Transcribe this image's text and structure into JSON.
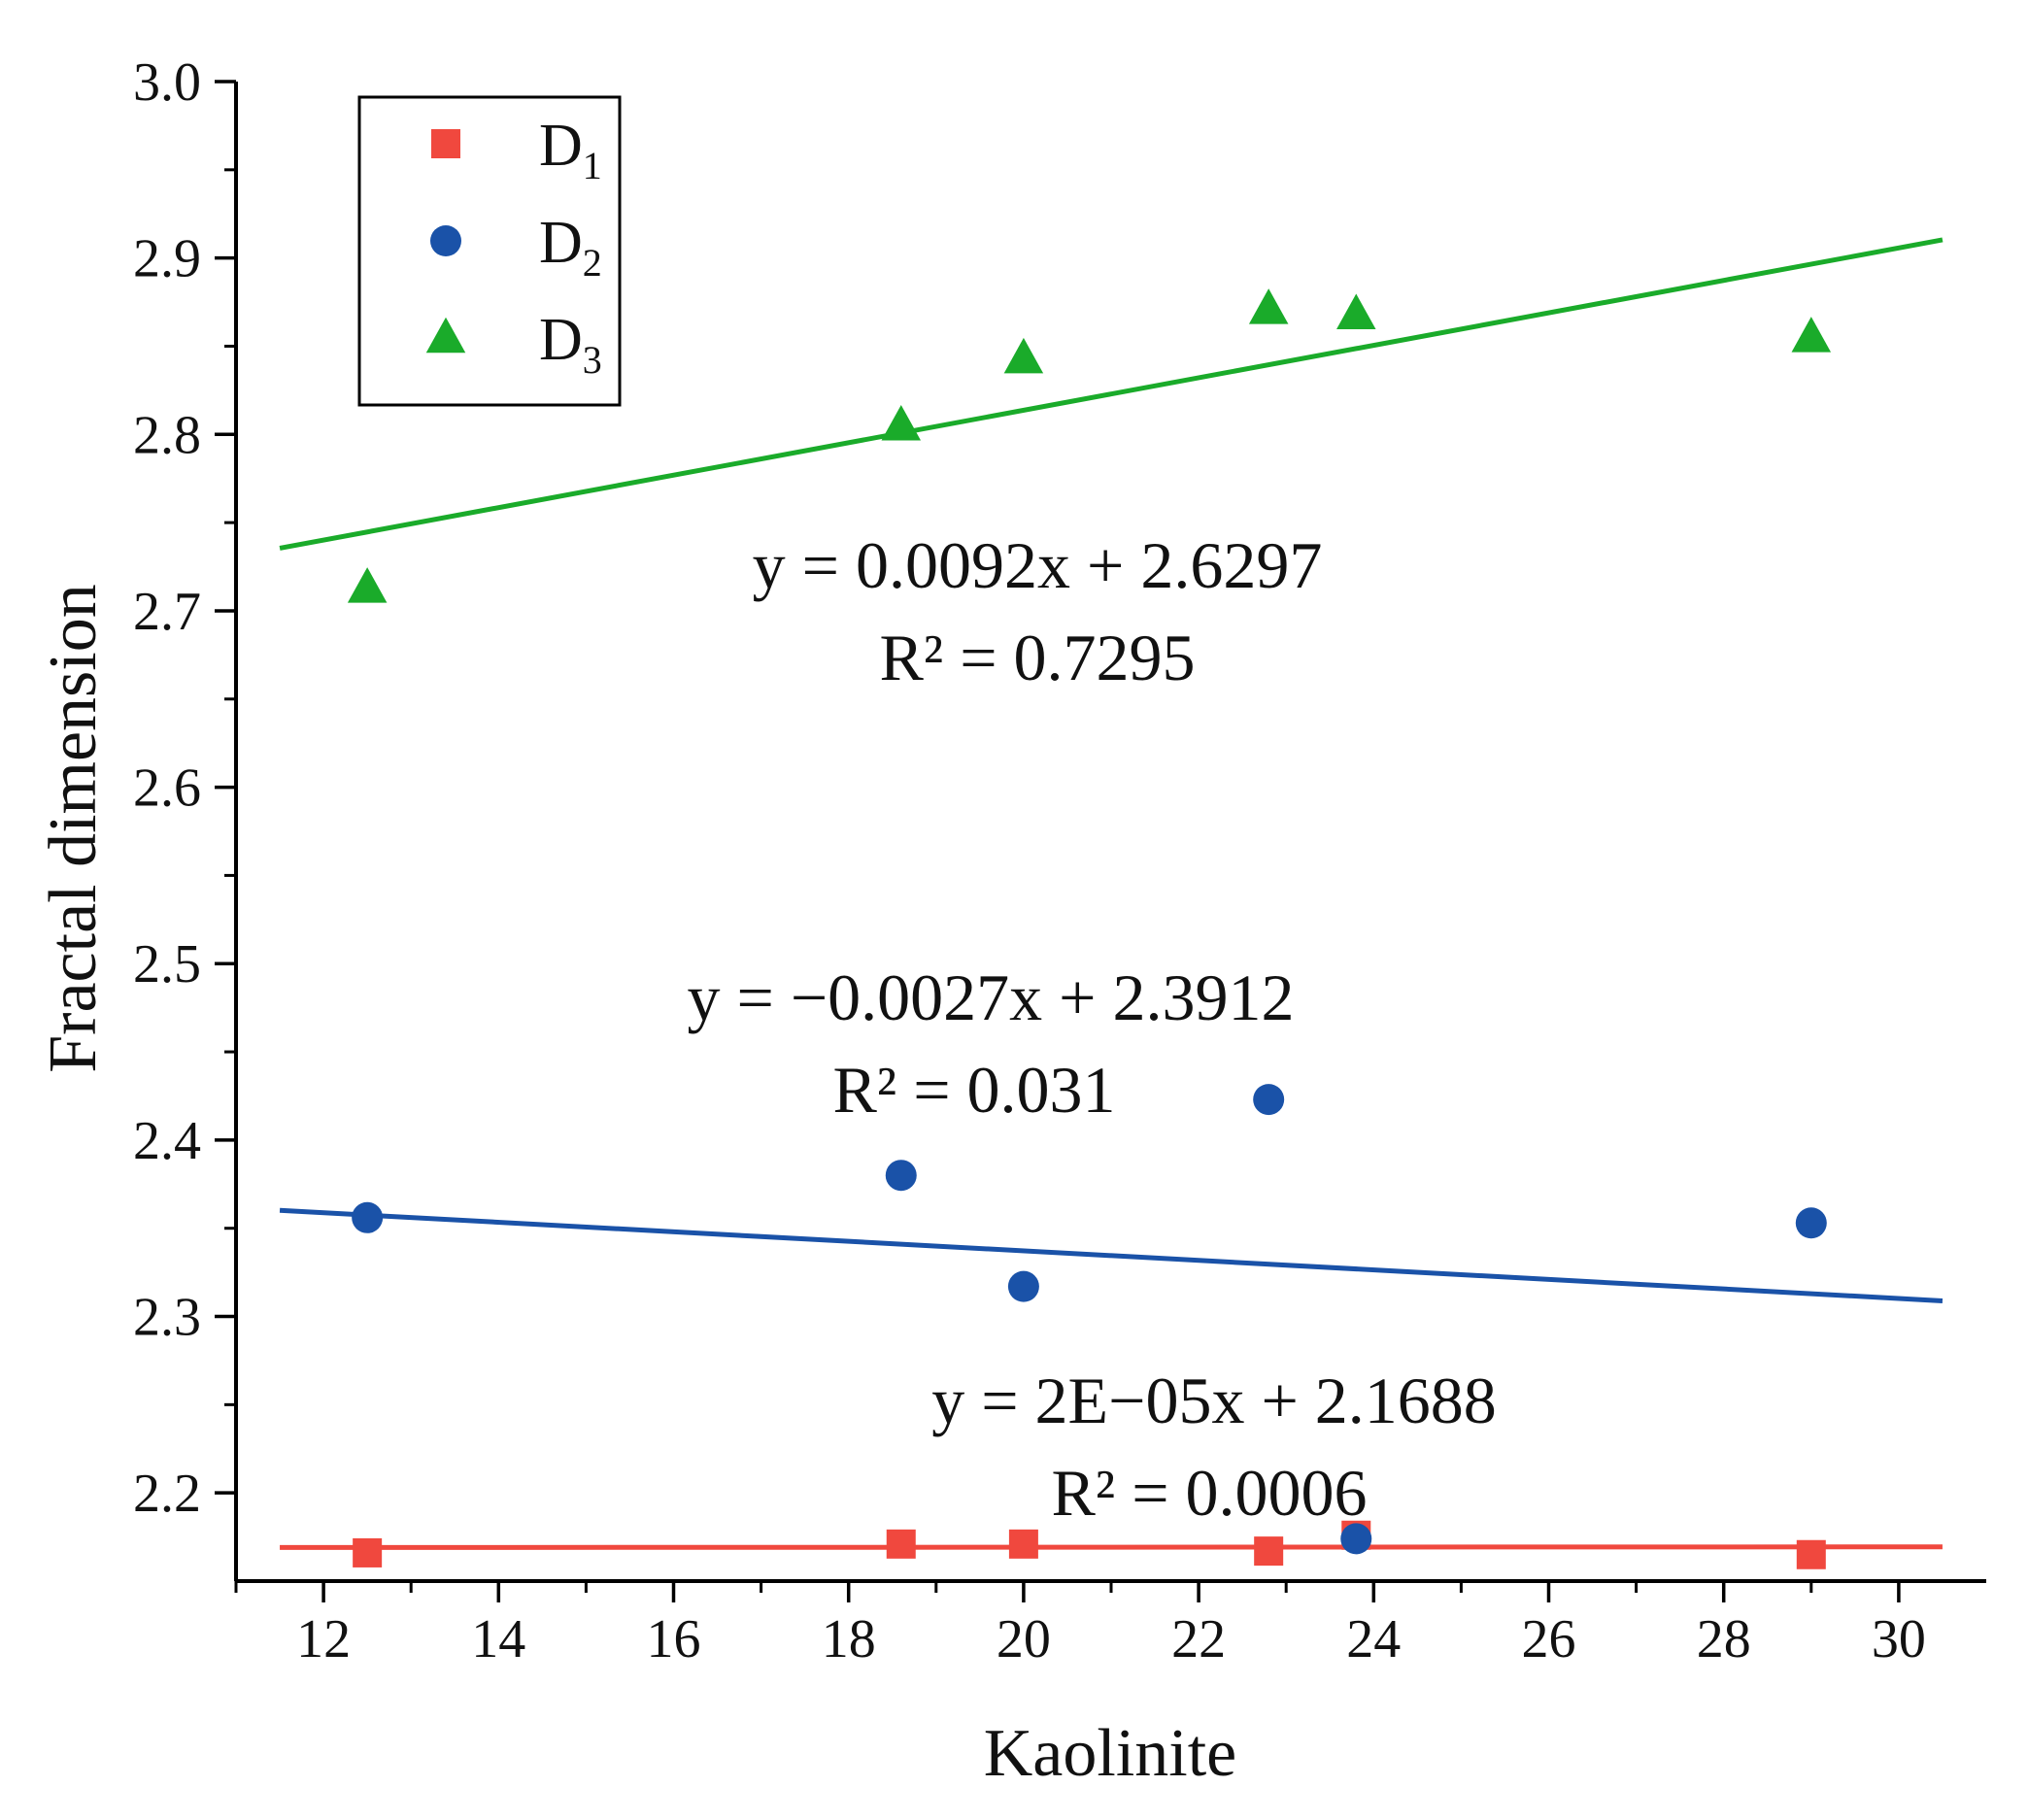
{
  "chart_data": {
    "type": "scatter",
    "title": "",
    "xlabel": "Kaolinite",
    "ylabel": "Fractal dimension",
    "xlim": [
      11.0,
      31.0
    ],
    "ylim": [
      2.15,
      3.0
    ],
    "xticks": [
      12,
      14,
      16,
      18,
      20,
      22,
      24,
      26,
      28,
      30
    ],
    "yticks": [
      2.2,
      2.3,
      2.4,
      2.5,
      2.6,
      2.7,
      2.8,
      2.9,
      3.0
    ],
    "xtick_labels": [
      "12",
      "14",
      "16",
      "18",
      "20",
      "22",
      "24",
      "26",
      "28",
      "30"
    ],
    "ytick_labels": [
      "2.2",
      "2.3",
      "2.4",
      "2.5",
      "2.6",
      "2.7",
      "2.8",
      "2.9",
      "3.0"
    ],
    "legend_position": "top-left",
    "series": [
      {
        "name": "D1",
        "label_main": "D",
        "label_sub": "1",
        "marker": "square",
        "color": "#f0483e",
        "x": [
          12.5,
          18.6,
          20.0,
          22.8,
          23.8,
          29.0
        ],
        "y": [
          2.166,
          2.171,
          2.171,
          2.167,
          2.176,
          2.165
        ],
        "fit": {
          "slope": 2e-05,
          "intercept": 2.1688,
          "x_range": [
            11.5,
            30.5
          ]
        },
        "equation": "y = 2E−05x + 2.1688",
        "r2": "R² = 0.0006"
      },
      {
        "name": "D2",
        "label_main": "D",
        "label_sub": "2",
        "marker": "circle",
        "color": "#1a52a8",
        "x": [
          12.5,
          18.6,
          20.0,
          22.8,
          23.8,
          29.0
        ],
        "y": [
          2.356,
          2.38,
          2.317,
          2.423,
          2.174,
          2.353
        ],
        "fit": {
          "slope": -0.0027,
          "intercept": 2.3912,
          "x_range": [
            11.5,
            30.5
          ]
        },
        "equation": "y = −0.0027x + 2.3912",
        "r2": "R² = 0.031"
      },
      {
        "name": "D3",
        "label_main": "D",
        "label_sub": "3",
        "marker": "triangle",
        "color": "#1aab2a",
        "x": [
          12.5,
          18.6,
          20.0,
          22.8,
          23.8,
          29.0
        ],
        "y": [
          2.713,
          2.805,
          2.843,
          2.871,
          2.868,
          2.855
        ],
        "fit": {
          "slope": 0.0092,
          "intercept": 2.6297,
          "x_range": [
            11.5,
            30.5
          ]
        },
        "equation": "y = 0.0092x + 2.6297",
        "r2": "R² = 0.7295"
      }
    ]
  }
}
